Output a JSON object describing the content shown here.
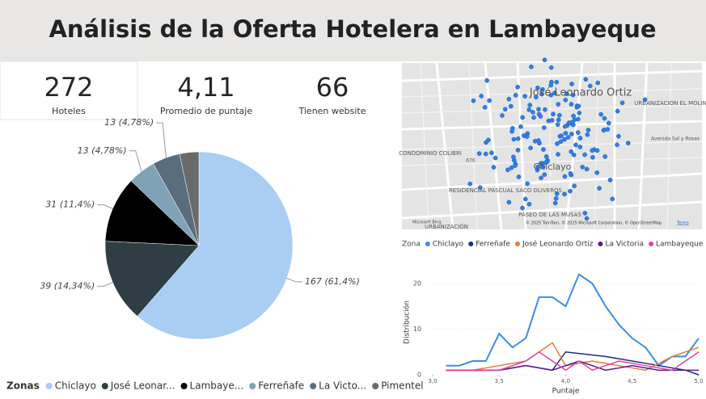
{
  "header": {
    "title": "Análisis de la Oferta Hotelera en Lambayeque"
  },
  "kpis": [
    {
      "value": "272",
      "label": "Hoteles"
    },
    {
      "value": "4,11",
      "label": "Promedio de puntaje"
    },
    {
      "value": "66",
      "label": "Tienen website"
    }
  ],
  "map": {
    "labels": [
      "José Leonardo Ortiz",
      "URBANIZACION EL MOLINITO",
      "CONDOMINIO COLIBRI",
      "Chiclayo",
      "RESIDENCIAL PASCUAL SACO OLIVEROS",
      "PASEO DE LAS MUSAS",
      "URBANIZACIÓN",
      "676",
      "Avenida Sal y Rosas"
    ],
    "provider": "Microsoft Bing",
    "copyright": "© 2025 TomTom, © 2025 Microsoft Corporation, © OpenStreetMap",
    "terms": "Terms"
  },
  "chart_data": [
    {
      "type": "pie",
      "legend_title": "Zonas",
      "categories": [
        "Chiclayo",
        "José Leonar...",
        "Lambaye...",
        "Ferreñafe",
        "La Victo...",
        "Pimentel"
      ],
      "values": [
        167,
        39,
        31,
        13,
        13,
        9
      ],
      "value_labels": [
        "167 (61,4%)",
        "39 (14,34%)",
        "31 (11,4%)",
        "13 (4,78%)",
        "13 (4,78%)",
        null
      ],
      "colors": [
        "#a9cdf3",
        "#2e3e44",
        "#000000",
        "#7fa2b8",
        "#5a6d7c",
        "#6a6a6a"
      ]
    },
    {
      "type": "line",
      "legend_title": "Zona",
      "x_label": "Puntaje",
      "y_label": "Distribución",
      "xlim": [
        3,
        5
      ],
      "ylim": [
        0,
        23
      ],
      "xticks": [
        {
          "value": 3,
          "label": "3,0"
        },
        {
          "value": 3.5,
          "label": "3,5"
        },
        {
          "value": 4,
          "label": "4,0"
        },
        {
          "value": 4.5,
          "label": "4,5"
        },
        {
          "value": 5,
          "label": "5,0"
        }
      ],
      "yticks": [
        0,
        10,
        20
      ],
      "series": [
        {
          "name": "Chiclayo",
          "color": "#3a8ee6",
          "x": [
            3.1,
            3.2,
            3.3,
            3.4,
            3.5,
            3.6,
            3.7,
            3.8,
            3.9,
            4.0,
            4.1,
            4.2,
            4.3,
            4.4,
            4.5,
            4.6,
            4.7,
            4.8,
            4.9,
            5.0
          ],
          "values": [
            2,
            2,
            3,
            3,
            9,
            6,
            8,
            17,
            17,
            15,
            22,
            20,
            15,
            11,
            8,
            6,
            2,
            4,
            4,
            8
          ]
        },
        {
          "name": "Ferreñafe",
          "color": "#1b2a8c",
          "x": [
            3.1,
            3.5,
            3.7,
            3.9,
            4.0,
            4.3,
            4.5,
            4.7,
            4.9,
            5.0
          ],
          "values": [
            1,
            1,
            2,
            1,
            5,
            4,
            3,
            2,
            1,
            0
          ]
        },
        {
          "name": "José Leonardo Ortiz",
          "color": "#e8783a",
          "x": [
            3.1,
            3.3,
            3.5,
            3.7,
            3.8,
            3.9,
            4.0,
            4.2,
            4.4,
            4.6,
            4.8,
            5.0
          ],
          "values": [
            1,
            1,
            2,
            3,
            5,
            7,
            2,
            3,
            2,
            1,
            4,
            6
          ]
        },
        {
          "name": "La Victoria",
          "color": "#5b1a8a",
          "x": [
            3.1,
            3.5,
            3.7,
            3.9,
            4.1,
            4.3,
            4.5,
            4.7,
            5.0
          ],
          "values": [
            1,
            1,
            2,
            1,
            3,
            1,
            2,
            1,
            1
          ]
        },
        {
          "name": "Lambayeque",
          "color": "#e040a0",
          "x": [
            3.1,
            3.3,
            3.5,
            3.7,
            3.8,
            3.9,
            4.0,
            4.1,
            4.2,
            4.4,
            4.6,
            4.8,
            4.9,
            5.0
          ],
          "values": [
            1,
            1,
            1,
            3,
            5,
            3,
            1,
            3,
            1,
            3,
            2,
            1,
            3,
            5
          ]
        }
      ]
    }
  ]
}
